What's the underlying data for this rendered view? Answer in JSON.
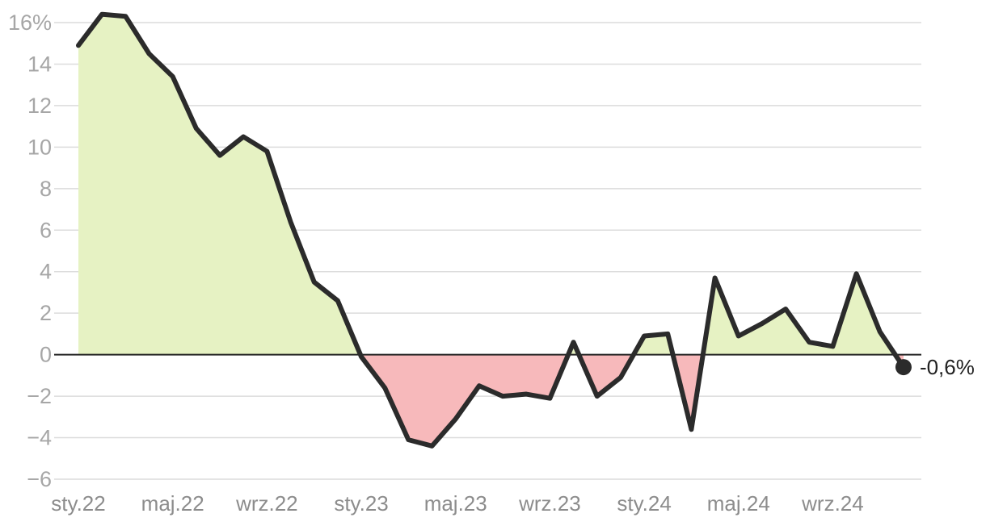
{
  "chart_data": {
    "type": "line",
    "x": [
      "sty.22",
      "lut.22",
      "mar.22",
      "kwi.22",
      "maj.22",
      "cze.22",
      "lip.22",
      "sie.22",
      "wrz.22",
      "paź.22",
      "lis.22",
      "gru.22",
      "sty.23",
      "lut.23",
      "mar.23",
      "kwi.23",
      "maj.23",
      "cze.23",
      "lip.23",
      "sie.23",
      "wrz.23",
      "paź.23",
      "lis.23",
      "gru.23",
      "sty.24",
      "lut.24",
      "mar.24",
      "kwi.24",
      "maj.24",
      "cze.24",
      "lip.24",
      "sie.24",
      "wrz.24",
      "paź.24",
      "lis.24",
      "gru.24"
    ],
    "values": [
      14.9,
      16.4,
      16.3,
      14.5,
      13.4,
      10.9,
      9.6,
      10.5,
      9.8,
      6.4,
      3.5,
      2.6,
      -0.1,
      -1.6,
      -4.1,
      -4.4,
      -3.1,
      -1.5,
      -2.0,
      -1.9,
      -2.1,
      0.6,
      -2.0,
      -1.1,
      0.9,
      1.0,
      -3.6,
      3.7,
      0.9,
      1.5,
      2.2,
      0.6,
      0.4,
      3.9,
      1.1,
      -0.6
    ],
    "series": [
      {
        "name": "",
        "values_ref": "values"
      }
    ],
    "ylim": [
      -6,
      16
    ],
    "yticks": [
      -6,
      -4,
      -2,
      0,
      2,
      4,
      6,
      8,
      10,
      12,
      14,
      16
    ],
    "ytick_labels": [
      "−6",
      "−4",
      "−2",
      "0",
      "2",
      "4",
      "6",
      "8",
      "10",
      "12",
      "14",
      "16%"
    ],
    "xtick_indices": [
      0,
      4,
      8,
      12,
      16,
      20,
      24,
      28,
      32
    ],
    "xtick_labels": [
      "sty.22",
      "maj.22",
      "wrz.22",
      "sty.23",
      "maj.23",
      "wrz.23",
      "sty.24",
      "maj.24",
      "wrz.24"
    ],
    "end_label": "-0,6%",
    "grid": true,
    "title": "",
    "xlabel": "",
    "ylabel": "",
    "colors": {
      "line": "#2b2b2b",
      "positive_fill": "#e6f2c3",
      "negative_fill": "#f7b9bb",
      "grid": "#dcdcdc",
      "zero_line": "#222222"
    }
  }
}
